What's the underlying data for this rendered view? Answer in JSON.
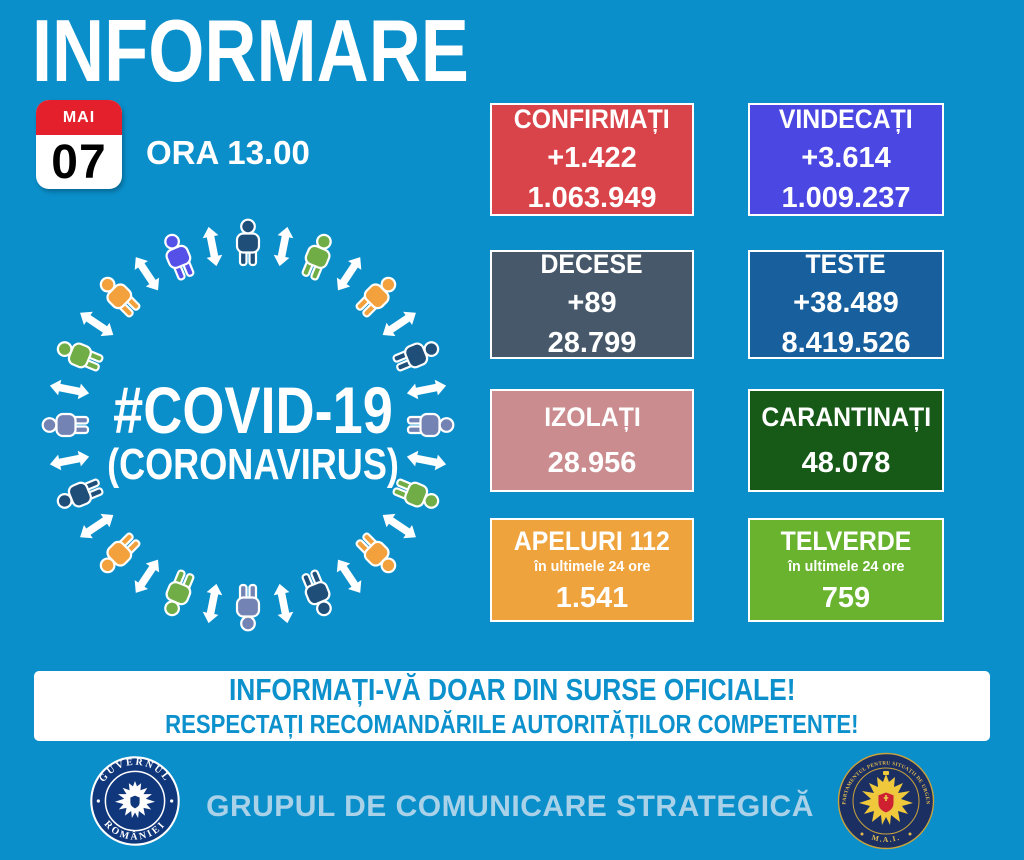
{
  "title": "INFORMARE",
  "date": {
    "month": "MAI",
    "day": "07",
    "time_label": "ORA 13.00"
  },
  "circle": {
    "hashtag": "#COVID-19",
    "subtitle": "(CORONAVIRUS)",
    "person_colors": [
      "#1F4E79",
      "#70AD47",
      "#F2A13C",
      "#1F4E79",
      "#7383B4",
      "#70AD47",
      "#F2A13C",
      "#1F4E79",
      "#7383B4",
      "#70AD47",
      "#F2A13C",
      "#1F4E79",
      "#7383B4",
      "#70AD47",
      "#F2A13C",
      "#5551E8"
    ]
  },
  "stats": [
    {
      "id": "confirmati",
      "title": "CONFIRMAȚI",
      "delta": "+1.422",
      "value": "1.063.949"
    },
    {
      "id": "vindecati",
      "title": "VINDECAȚI",
      "delta": "+3.614",
      "value": "1.009.237"
    },
    {
      "id": "decese",
      "title": "DECESE",
      "delta": "+89",
      "value": "28.799"
    },
    {
      "id": "teste",
      "title": "TESTE",
      "delta": "+38.489",
      "value": "8.419.526"
    },
    {
      "id": "izolati",
      "title": "IZOLAȚI",
      "value": "28.956"
    },
    {
      "id": "carantinati",
      "title": "CARANTINAȚI",
      "value": "48.078"
    },
    {
      "id": "apeluri",
      "title": "APELURI 112",
      "subtitle": "în ultimele 24 ore",
      "value": "1.541"
    },
    {
      "id": "telverde",
      "title": "TELVERDE",
      "subtitle": "în ultimele 24 ore",
      "value": "759"
    }
  ],
  "banner": {
    "line1": "INFORMAȚI-VĂ DOAR DIN SURSE OFICIALE!",
    "line2": "RESPECTAȚI RECOMANDĂRILE AUTORITĂȚILOR COMPETENTE!"
  },
  "footer": {
    "label": "GRUPUL DE COMUNICARE STRATEGICĂ",
    "left_seal": {
      "top": "GUVERNUL",
      "bottom": "ROMÂNIEI"
    },
    "right_seal": {
      "ring": "DEPARTAMENTUL PENTRU SITUAȚII DE URGENȚĂ",
      "bottom": "M.A.I."
    }
  },
  "colors": {
    "background": "#0A8FCB",
    "banner_text": "#0D91CD",
    "footer_text": "#A9D2E9",
    "calendar_red": "#E4202C",
    "box_confirmati": "#D9444A",
    "box_vindecati": "#4A47E2",
    "box_decese": "#46586A",
    "box_teste": "#175F9D",
    "box_izolati": "#CA8C8E",
    "box_carantinati": "#175A18",
    "box_apeluri": "#EFA33D",
    "box_telverde": "#69B32E"
  }
}
